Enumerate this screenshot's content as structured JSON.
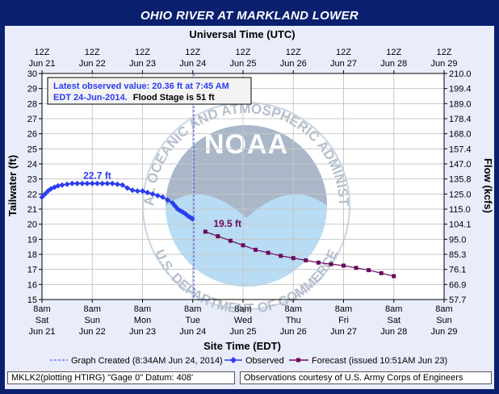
{
  "title": "OHIO RIVER AT MARKLAND LOWER",
  "top_axis_label": "Universal Time (UTC)",
  "bottom_axis_label": "Site Time (EDT)",
  "left_axis_label": "Tailwater (ft)",
  "right_axis_label": "Flow (kcfs)",
  "info_box": {
    "line1": "Latest observed value: 20.36 ft at 7:45 AM",
    "line2_blue": "EDT 24-Jun-2014.",
    "line2_black": "Flood Stage is 51 ft"
  },
  "legend": {
    "graph_created": "Graph Created (8:34AM Jun 24, 2014)",
    "observed": "Observed",
    "forecast": "Forecast (issued 10:51AM Jun 23)"
  },
  "footer": {
    "left": "MKLK2(plotting HTIRG) \"Gage 0\" Datum: 408'",
    "right": "Observations courtesy of U.S. Army Corps of Engineers"
  },
  "watermark": {
    "logo_text": "NOAA",
    "ring_text": "NATIONAL OCEANIC AND ATMOSPHERIC ADMINISTRATION",
    "bottom_text": "U.S. DEPARTMENT OF COMMERCE"
  },
  "colors": {
    "observed": "#2b3df0",
    "forecast": "#6b0a5e",
    "nav_bar": "#0a1f6e"
  },
  "chart_data": {
    "type": "line",
    "title": "OHIO RIVER AT MARKLAND LOWER",
    "xlabel": "Site Time (EDT)",
    "ylabel": "Tailwater (ft)",
    "y2label": "Flow (kcfs)",
    "x_unit": "days since Jun 21 8am EDT",
    "xlim": [
      0,
      8
    ],
    "ylim": [
      15,
      30
    ],
    "grid": true,
    "y_ticks": [
      15,
      16,
      17,
      18,
      19,
      20,
      21,
      22,
      23,
      24,
      25,
      26,
      27,
      28,
      29,
      30
    ],
    "y2_ticks": [
      "57.7",
      "66.9",
      "76.1",
      "85.3",
      "95.0",
      "104.1",
      "115.0",
      "125.0",
      "135.8",
      "147.0",
      "157.4",
      "168.0",
      "178.4",
      "189.0",
      "199.4",
      "210.0"
    ],
    "x_ticks_bottom": [
      {
        "time": "8am",
        "day": "Sat",
        "date": "Jun 21"
      },
      {
        "time": "8am",
        "day": "Sun",
        "date": "Jun 22"
      },
      {
        "time": "8am",
        "day": "Mon",
        "date": "Jun 23"
      },
      {
        "time": "8am",
        "day": "Tue",
        "date": "Jun 24"
      },
      {
        "time": "8am",
        "day": "Wed",
        "date": "Jun 25"
      },
      {
        "time": "8am",
        "day": "Thu",
        "date": "Jun 26"
      },
      {
        "time": "8am",
        "day": "Fri",
        "date": "Jun 27"
      },
      {
        "time": "8am",
        "day": "Sat",
        "date": "Jun 28"
      },
      {
        "time": "8am",
        "day": "Sun",
        "date": "Jun 29"
      }
    ],
    "x_ticks_top": [
      {
        "time": "12Z",
        "date": "Jun 21"
      },
      {
        "time": "12Z",
        "date": "Jun 22"
      },
      {
        "time": "12Z",
        "date": "Jun 23"
      },
      {
        "time": "12Z",
        "date": "Jun 24"
      },
      {
        "time": "12Z",
        "date": "Jun 25"
      },
      {
        "time": "12Z",
        "date": "Jun 26"
      },
      {
        "time": "12Z",
        "date": "Jun 27"
      },
      {
        "time": "12Z",
        "date": "Jun 28"
      },
      {
        "time": "12Z",
        "date": "Jun 29"
      }
    ],
    "graph_created_x": 3.02,
    "series": [
      {
        "name": "Observed",
        "color": "#2b3df0",
        "x": [
          0.0,
          0.06,
          0.12,
          0.18,
          0.25,
          0.32,
          0.4,
          0.5,
          0.6,
          0.7,
          0.8,
          0.9,
          1.0,
          1.1,
          1.2,
          1.3,
          1.4,
          1.5,
          1.6,
          1.7,
          1.8,
          1.9,
          2.0,
          2.1,
          2.2,
          2.3,
          2.4,
          2.5,
          2.6,
          2.65,
          2.7,
          2.75,
          2.8,
          2.85,
          2.9,
          2.95,
          2.99
        ],
        "values": [
          21.8,
          22.0,
          22.2,
          22.35,
          22.45,
          22.55,
          22.6,
          22.65,
          22.7,
          22.7,
          22.7,
          22.7,
          22.7,
          22.7,
          22.7,
          22.7,
          22.7,
          22.65,
          22.6,
          22.4,
          22.25,
          22.2,
          22.2,
          22.1,
          22.0,
          21.9,
          21.8,
          21.6,
          21.4,
          21.2,
          21.0,
          20.9,
          20.8,
          20.7,
          20.55,
          20.45,
          20.36
        ]
      },
      {
        "name": "Forecast (issued 10:51AM Jun 23)",
        "color": "#6b0a5e",
        "x": [
          3.25,
          3.5,
          3.75,
          4.0,
          4.25,
          4.5,
          4.75,
          5.0,
          5.25,
          5.5,
          5.75,
          6.0,
          6.25,
          6.5,
          6.75,
          7.0
        ],
        "values": [
          19.5,
          19.2,
          18.9,
          18.6,
          18.3,
          18.1,
          17.9,
          17.75,
          17.6,
          17.45,
          17.35,
          17.25,
          17.1,
          16.95,
          16.75,
          16.55
        ]
      }
    ],
    "annotations": [
      {
        "text": "22.7 ft",
        "x": 1.1,
        "y": 22.7
      },
      {
        "text": "19.5 ft",
        "x": 3.25,
        "y": 19.5
      }
    ]
  }
}
